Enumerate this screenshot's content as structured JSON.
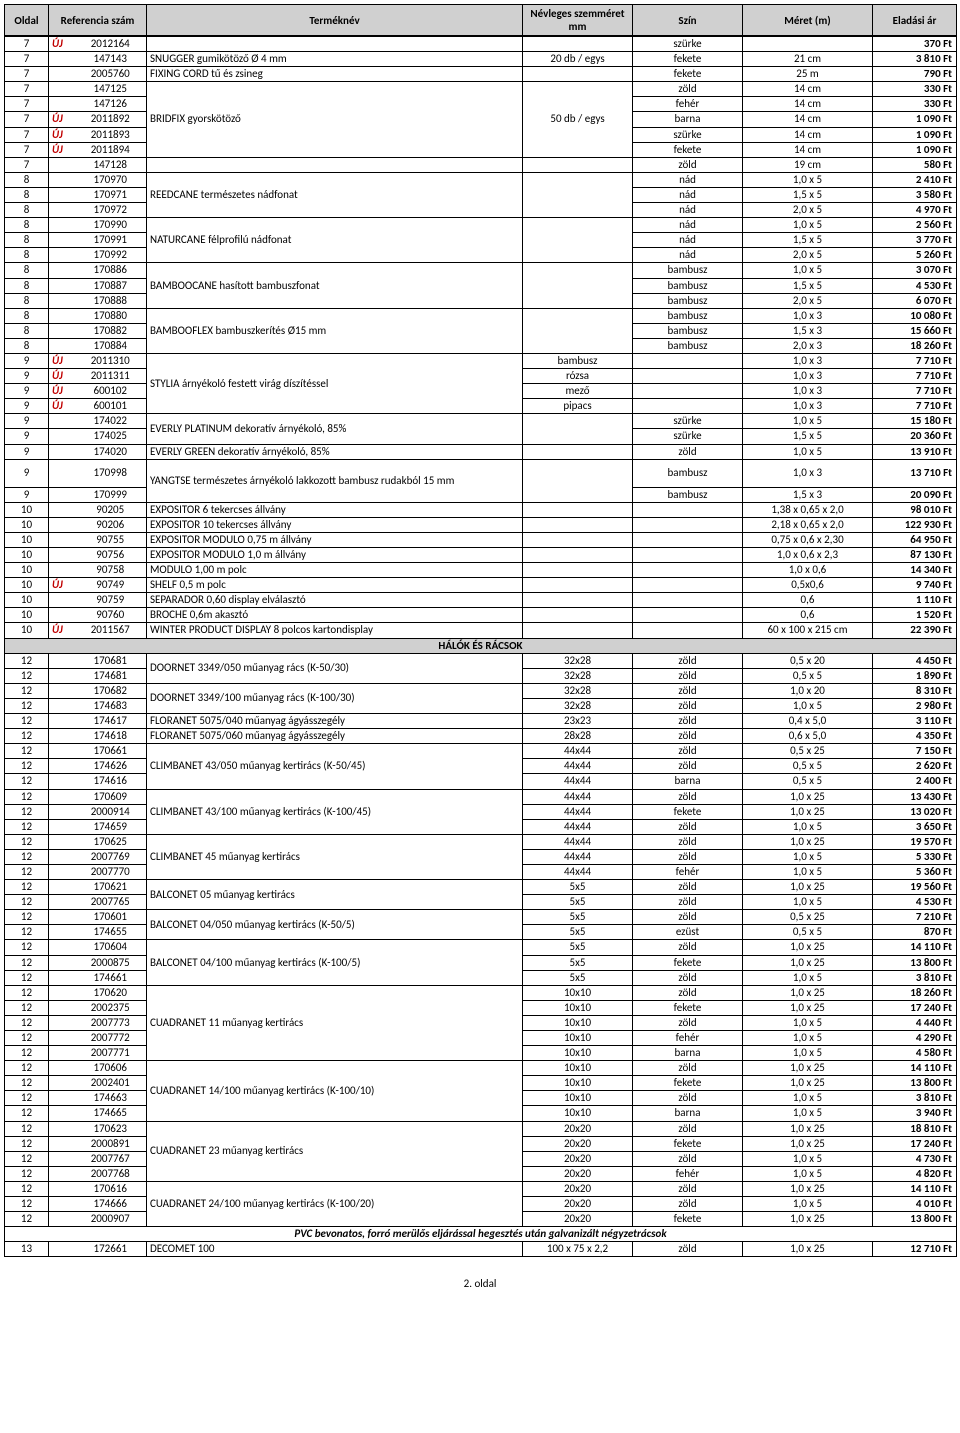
{
  "headers": {
    "oldal": "Oldal",
    "ref": "Referencia szám",
    "name": "Terméknév",
    "mm": "Névleges szemméret mm",
    "szin": "Szín",
    "meret": "Méret (m)",
    "ar": "Eladási ár"
  },
  "sections": {
    "halok": "HÁLÓK ÉS RÁCSOK",
    "pvc": "PVC bevonatos, forró merülős eljárással hegesztés után galvanizált négyzetrácsok"
  },
  "footer": "2. oldal",
  "rows": [
    {
      "o": "7",
      "uj": "ÚJ",
      "ref": "2012164",
      "name": "",
      "mm": "",
      "szin": "szürke",
      "meret": "",
      "ar": "370 Ft"
    },
    {
      "o": "7",
      "uj": "",
      "ref": "147143",
      "name": "SNUGGER gumikötöző Ø 4 mm",
      "mm": "20 db / egys",
      "szin": "fekete",
      "meret": "21 cm",
      "ar": "3 810 Ft"
    },
    {
      "o": "7",
      "uj": "",
      "ref": "2005760",
      "name": "FIXING CORD tű és zsineg",
      "mm": "",
      "szin": "fekete",
      "meret": "25 m",
      "ar": "790 Ft"
    },
    {
      "o": "7",
      "uj": "",
      "ref": "147125",
      "name_span": 5,
      "name": "BRIDFIX  gyorskötöző",
      "mm_span": 5,
      "mm": "50 db / egys",
      "szin": "zöld",
      "meret": "14 cm",
      "ar": "330 Ft"
    },
    {
      "o": "7",
      "uj": "",
      "ref": "147126",
      "szin": "fehér",
      "meret": "14 cm",
      "ar": "330 Ft"
    },
    {
      "o": "7",
      "uj": "ÚJ",
      "ref": "2011892",
      "szin": "barna",
      "meret": "14 cm",
      "ar": "1 090 Ft"
    },
    {
      "o": "7",
      "uj": "ÚJ",
      "ref": "2011893",
      "szin": "szürke",
      "meret": "14 cm",
      "ar": "1 090 Ft"
    },
    {
      "o": "7",
      "uj": "ÚJ",
      "ref": "2011894",
      "szin": "fekete",
      "meret": "14 cm",
      "ar": "1 090 Ft"
    },
    {
      "o": "7",
      "uj": "",
      "ref": "147128",
      "name": "",
      "mm": "",
      "szin": "zöld",
      "meret": "19 cm",
      "ar": "580 Ft"
    },
    {
      "o": "8",
      "uj": "",
      "ref": "170970",
      "name_span": 3,
      "name": "REEDCANE természetes nádfonat",
      "mm_span": 3,
      "mm": "",
      "szin": "nád",
      "meret": "1,0 x 5",
      "ar": "2 410 Ft"
    },
    {
      "o": "8",
      "uj": "",
      "ref": "170971",
      "szin": "nád",
      "meret": "1,5 x 5",
      "ar": "3 580 Ft"
    },
    {
      "o": "8",
      "uj": "",
      "ref": "170972",
      "szin": "nád",
      "meret": "2,0 x 5",
      "ar": "4 970 Ft"
    },
    {
      "o": "8",
      "uj": "",
      "ref": "170990",
      "name_span": 3,
      "name": "NATURCANE félprofilú nádfonat",
      "mm_span": 3,
      "mm": "",
      "szin": "nád",
      "meret": "1,0 x 5",
      "ar": "2 560 Ft"
    },
    {
      "o": "8",
      "uj": "",
      "ref": "170991",
      "szin": "nád",
      "meret": "1,5 x 5",
      "ar": "3 770 Ft"
    },
    {
      "o": "8",
      "uj": "",
      "ref": "170992",
      "szin": "nád",
      "meret": "2,0 x 5",
      "ar": "5 260 Ft"
    },
    {
      "o": "8",
      "uj": "",
      "ref": "170886",
      "name_span": 3,
      "name": "BAMBOOCANE hasított bambuszfonat",
      "mm_span": 3,
      "mm": "",
      "szin": "bambusz",
      "meret": "1,0 x 5",
      "ar": "3 070 Ft"
    },
    {
      "o": "8",
      "uj": "",
      "ref": "170887",
      "szin": "bambusz",
      "meret": "1,5 x 5",
      "ar": "4 530 Ft"
    },
    {
      "o": "8",
      "uj": "",
      "ref": "170888",
      "szin": "bambusz",
      "meret": "2,0 x 5",
      "ar": "6 070 Ft"
    },
    {
      "o": "8",
      "uj": "",
      "ref": "170880",
      "name_span": 3,
      "name": "BAMBOOFLEX bambuszkerítés Ø15 mm",
      "mm_span": 3,
      "mm": "",
      "szin": "bambusz",
      "meret": "1,0 x 3",
      "ar": "10 080 Ft"
    },
    {
      "o": "8",
      "uj": "",
      "ref": "170882",
      "szin": "bambusz",
      "meret": "1,5 x 3",
      "ar": "15 660 Ft"
    },
    {
      "o": "8",
      "uj": "",
      "ref": "170884",
      "szin": "bambusz",
      "meret": "2,0 x 3",
      "ar": "18 260 Ft"
    },
    {
      "o": "9",
      "uj": "ÚJ",
      "ref": "2011310",
      "name_span": 4,
      "name": "STYLIA árnyékoló festett virág díszítéssel",
      "mm": "bambusz",
      "szin": "",
      "meret": "1,0 x 3",
      "ar": "7 710 Ft"
    },
    {
      "o": "9",
      "uj": "ÚJ",
      "ref": "2011311",
      "mm": "rózsa",
      "szin": "",
      "meret": "1,0 x 3",
      "ar": "7 710 Ft"
    },
    {
      "o": "9",
      "uj": "ÚJ",
      "ref": "600102",
      "mm": "mező",
      "szin": "",
      "meret": "1,0 x 3",
      "ar": "7 710 Ft"
    },
    {
      "o": "9",
      "uj": "ÚJ",
      "ref": "600101",
      "mm": "pipacs",
      "szin": "",
      "meret": "1,0 x 3",
      "ar": "7 710 Ft"
    },
    {
      "o": "9",
      "uj": "",
      "ref": "174022",
      "name_span": 2,
      "name": "EVERLY PLATINUM dekoratív árnyékoló, 85%",
      "mm_span": 2,
      "mm": "",
      "szin": "szürke",
      "meret": "1,0 x 5",
      "ar": "15 180 Ft"
    },
    {
      "o": "9",
      "uj": "",
      "ref": "174025",
      "szin": "szürke",
      "meret": "1,5 x 5",
      "ar": "20 360 Ft"
    },
    {
      "o": "9",
      "uj": "",
      "ref": "174020",
      "name": "EVERLY GREEN dekoratív árnyékoló, 85%",
      "mm": "",
      "szin": "zöld",
      "meret": "1,0 x 5",
      "ar": "13 910 Ft"
    },
    {
      "o": "9",
      "uj": "",
      "ref": "170998",
      "name_span": 2,
      "name": "YANGTSE természetes árnyékoló lakkozott bambusz rudakból 15 mm",
      "mm_span": 2,
      "mm": "",
      "szin": "bambusz",
      "meret": "1,0 x 3",
      "ar": "13 710 Ft",
      "tall": true
    },
    {
      "o": "9",
      "uj": "",
      "ref": "170999",
      "szin": "bambusz",
      "meret": "1,5 x 3",
      "ar": "20 090 Ft"
    },
    {
      "o": "10",
      "uj": "",
      "ref": "90205",
      "name": "EXPOSITOR 6 tekercses állvány",
      "mm": "",
      "szin": "",
      "meret": "1,38 x 0,65 x 2,0",
      "ar": "98 010 Ft"
    },
    {
      "o": "10",
      "uj": "",
      "ref": "90206",
      "name": "EXPOSITOR 10 tekercses állvány",
      "mm": "",
      "szin": "",
      "meret": "2,18 x 0,65 x 2,0",
      "ar": "122 930 Ft"
    },
    {
      "o": "10",
      "uj": "",
      "ref": "90755",
      "name": "EXPOSITOR MODULO 0,75 m állvány",
      "mm": "",
      "szin": "",
      "meret": "0,75 x 0,6 x 2,30",
      "ar": "64 950 Ft"
    },
    {
      "o": "10",
      "uj": "",
      "ref": "90756",
      "name": "EXPOSITOR MODULO 1,0 m állvány",
      "mm": "",
      "szin": "",
      "meret": "1,0 x 0,6 x 2,3",
      "ar": "87 130 Ft"
    },
    {
      "o": "10",
      "uj": "",
      "ref": "90758",
      "name": "MODULO 1,00 m polc",
      "mm": "",
      "szin": "",
      "meret": "1,0 x 0,6",
      "ar": "14 340 Ft"
    },
    {
      "o": "10",
      "uj": "ÚJ",
      "ref": "90749",
      "name": "SHELF 0,5 m polc",
      "mm": "",
      "szin": "",
      "meret": "0,5x0,6",
      "ar": "9 740 Ft"
    },
    {
      "o": "10",
      "uj": "",
      "ref": "90759",
      "name": "SEPARADOR 0,60 display elválasztó",
      "mm": "",
      "szin": "",
      "meret": "0,6",
      "ar": "1 110 Ft"
    },
    {
      "o": "10",
      "uj": "",
      "ref": "90760",
      "name": "BROCHE 0,6m akasztó",
      "mm": "",
      "szin": "",
      "meret": "0,6",
      "ar": "1 520 Ft"
    },
    {
      "o": "10",
      "uj": "ÚJ",
      "ref": "2011567",
      "name": "WINTER PRODUCT DISPLAY 8 polcos kartondisplay",
      "mm": "",
      "szin": "",
      "meret": "60 x 100 x 215 cm",
      "ar": "22 390 Ft"
    },
    {
      "section": "halok"
    },
    {
      "o": "12",
      "uj": "",
      "ref": "170681",
      "name_span": 2,
      "name": "DOORNET 3349/050 műanyag rács (K-50/30)",
      "mm": "32x28",
      "szin": "zöld",
      "meret": "0,5 x 20",
      "ar": "4 450 Ft"
    },
    {
      "o": "12",
      "uj": "",
      "ref": "174681",
      "mm": "32x28",
      "szin": "zöld",
      "meret": "0,5 x 5",
      "ar": "1 890 Ft"
    },
    {
      "o": "12",
      "uj": "",
      "ref": "170682",
      "name_span": 2,
      "name": "DOORNET 3349/100 műanyag rács (K-100/30)",
      "mm": "32x28",
      "szin": "zöld",
      "meret": "1,0 x 20",
      "ar": "8 310 Ft"
    },
    {
      "o": "12",
      "uj": "",
      "ref": "174683",
      "mm": "32x28",
      "szin": "zöld",
      "meret": "1,0 x 5",
      "ar": "2 980 Ft"
    },
    {
      "o": "12",
      "uj": "",
      "ref": "174617",
      "name": "FLORANET 5075/040 műanyag ágyásszegély",
      "mm": "23x23",
      "szin": "zöld",
      "meret": "0,4 x 5,0",
      "ar": "3 110 Ft"
    },
    {
      "o": "12",
      "uj": "",
      "ref": "174618",
      "name": "FLORANET 5075/060 műanyag ágyásszegély",
      "mm": "28x28",
      "szin": "zöld",
      "meret": "0,6 x 5,0",
      "ar": "4 350 Ft"
    },
    {
      "o": "12",
      "uj": "",
      "ref": "170661",
      "name_span": 3,
      "name": "CLIMBANET 43/050 műanyag kertirács (K-50/45)",
      "mm": "44x44",
      "szin": "zöld",
      "meret": "0,5 x 25",
      "ar": "7 150 Ft"
    },
    {
      "o": "12",
      "uj": "",
      "ref": "174626",
      "mm": "44x44",
      "szin": "zöld",
      "meret": "0,5 x 5",
      "ar": "2 620 Ft"
    },
    {
      "o": "12",
      "uj": "",
      "ref": "174616",
      "mm": "44x44",
      "szin": "barna",
      "meret": "0,5 x 5",
      "ar": "2 400 Ft"
    },
    {
      "o": "12",
      "uj": "",
      "ref": "170609",
      "name_span": 3,
      "name": "CLIMBANET 43/100 műanyag kertirács (K-100/45)",
      "mm": "44x44",
      "szin": "zöld",
      "meret": "1,0 x 25",
      "ar": "13 430 Ft"
    },
    {
      "o": "12",
      "uj": "",
      "ref": "2000914",
      "mm": "44x44",
      "szin": "fekete",
      "meret": "1,0 x 25",
      "ar": "13 020 Ft"
    },
    {
      "o": "12",
      "uj": "",
      "ref": "174659",
      "mm": "44x44",
      "szin": "zöld",
      "meret": "1,0 x 5",
      "ar": "3 650 Ft"
    },
    {
      "o": "12",
      "uj": "",
      "ref": "170625",
      "name_span": 3,
      "name": "CLIMBANET 45 műanyag kertirács",
      "mm": "44x44",
      "szin": "zöld",
      "meret": "1,0 x 25",
      "ar": "19 570 Ft"
    },
    {
      "o": "12",
      "uj": "",
      "ref": "2007769",
      "mm": "44x44",
      "szin": "zöld",
      "meret": "1,0 x 5",
      "ar": "5 330 Ft"
    },
    {
      "o": "12",
      "uj": "",
      "ref": "2007770",
      "mm": "44x44",
      "szin": "fehér",
      "meret": "1,0 x 5",
      "ar": "5 360 Ft"
    },
    {
      "o": "12",
      "uj": "",
      "ref": "170621",
      "name_span": 2,
      "name": "BALCONET  05 műanyag kertirács",
      "mm": "5x5",
      "szin": "zöld",
      "meret": "1,0 x 25",
      "ar": "19 560 Ft"
    },
    {
      "o": "12",
      "uj": "",
      "ref": "2007765",
      "mm": "5x5",
      "szin": "zöld",
      "meret": "1,0 x 5",
      "ar": "4 530 Ft"
    },
    {
      "o": "12",
      "uj": "",
      "ref": "170601",
      "name_span": 2,
      "name": "BALCONET 04/050 műanyag kertirács (K-50/5)",
      "mm": "5x5",
      "szin": "zöld",
      "meret": "0,5 x 25",
      "ar": "7 210 Ft"
    },
    {
      "o": "12",
      "uj": "",
      "ref": "174655",
      "mm": "5x5",
      "szin": "ezüst",
      "meret": "0,5 x 5",
      "ar": "870 Ft"
    },
    {
      "o": "12",
      "uj": "",
      "ref": "170604",
      "name_span": 3,
      "name": "BALCONET 04/100 műanyag kertirács (K-100/5)",
      "mm": "5x5",
      "szin": "zöld",
      "meret": "1,0 x 25",
      "ar": "14 110 Ft"
    },
    {
      "o": "12",
      "uj": "",
      "ref": "2000875",
      "mm": "5x5",
      "szin": "fekete",
      "meret": "1,0 x 25",
      "ar": "13 800 Ft"
    },
    {
      "o": "12",
      "uj": "",
      "ref": "174661",
      "mm": "5x5",
      "szin": "zöld",
      "meret": "1,0 x 5",
      "ar": "3 810 Ft"
    },
    {
      "o": "12",
      "uj": "",
      "ref": "170620",
      "name_span": 5,
      "name": "CUADRANET 11 műanyag kertirács",
      "mm": "10x10",
      "szin": "zöld",
      "meret": "1,0 x 25",
      "ar": "18 260 Ft"
    },
    {
      "o": "12",
      "uj": "",
      "ref": "2002375",
      "mm": "10x10",
      "szin": "fekete",
      "meret": "1,0 x 25",
      "ar": "17 240 Ft"
    },
    {
      "o": "12",
      "uj": "",
      "ref": "2007773",
      "mm": "10x10",
      "szin": "zöld",
      "meret": "1,0 x 5",
      "ar": "4 440 Ft"
    },
    {
      "o": "12",
      "uj": "",
      "ref": "2007772",
      "mm": "10x10",
      "szin": "fehér",
      "meret": "1,0 x 5",
      "ar": "4 290 Ft"
    },
    {
      "o": "12",
      "uj": "",
      "ref": "2007771",
      "mm": "10x10",
      "szin": "barna",
      "meret": "1,0 x 5",
      "ar": "4 580 Ft"
    },
    {
      "o": "12",
      "uj": "",
      "ref": "170606",
      "name_span": 4,
      "name": "CUADRANET 14/100 műanyag kertirács (K-100/10)",
      "mm": "10x10",
      "szin": "zöld",
      "meret": "1,0 x 25",
      "ar": "14 110 Ft"
    },
    {
      "o": "12",
      "uj": "",
      "ref": "2002401",
      "mm": "10x10",
      "szin": "fekete",
      "meret": "1,0 x 25",
      "ar": "13 800 Ft"
    },
    {
      "o": "12",
      "uj": "",
      "ref": "174663",
      "mm": "10x10",
      "szin": "zöld",
      "meret": "1,0 x 5",
      "ar": "3 810 Ft"
    },
    {
      "o": "12",
      "uj": "",
      "ref": "174665",
      "mm": "10x10",
      "szin": "barna",
      "meret": "1,0 x 5",
      "ar": "3 940 Ft"
    },
    {
      "o": "12",
      "uj": "",
      "ref": "170623",
      "name_span": 4,
      "name": "CUADRANET 23 műanyag kertirács",
      "mm": "20x20",
      "szin": "zöld",
      "meret": "1,0 x 25",
      "ar": "18 810 Ft"
    },
    {
      "o": "12",
      "uj": "",
      "ref": "2000891",
      "mm": "20x20",
      "szin": "fekete",
      "meret": "1,0 x 25",
      "ar": "17 240 Ft"
    },
    {
      "o": "12",
      "uj": "",
      "ref": "2007767",
      "mm": "20x20",
      "szin": "zöld",
      "meret": "1,0 x 5",
      "ar": "4 730 Ft"
    },
    {
      "o": "12",
      "uj": "",
      "ref": "2007768",
      "mm": "20x20",
      "szin": "fehér",
      "meret": "1,0 x 5",
      "ar": "4 820 Ft"
    },
    {
      "o": "12",
      "uj": "",
      "ref": "170616",
      "name_span": 3,
      "name": "CUADRANET 24/100 műanyag kertirács (K-100/20)",
      "mm": "20x20",
      "szin": "zöld",
      "meret": "1,0 x 25",
      "ar": "14 110 Ft"
    },
    {
      "o": "12",
      "uj": "",
      "ref": "174666",
      "mm": "20x20",
      "szin": "zöld",
      "meret": "1,0 x 5",
      "ar": "4 010 Ft"
    },
    {
      "o": "12",
      "uj": "",
      "ref": "2000907",
      "mm": "20x20",
      "szin": "fekete",
      "meret": "1,0 x 25",
      "ar": "13 800 Ft"
    },
    {
      "subsection": "pvc"
    },
    {
      "o": "13",
      "uj": "",
      "ref": "172661",
      "name": "DECOMET 100",
      "mm": "100 x 75 x 2,2",
      "szin": "zöld",
      "meret": "1,0 x 25",
      "ar": "12 710 Ft"
    }
  ]
}
